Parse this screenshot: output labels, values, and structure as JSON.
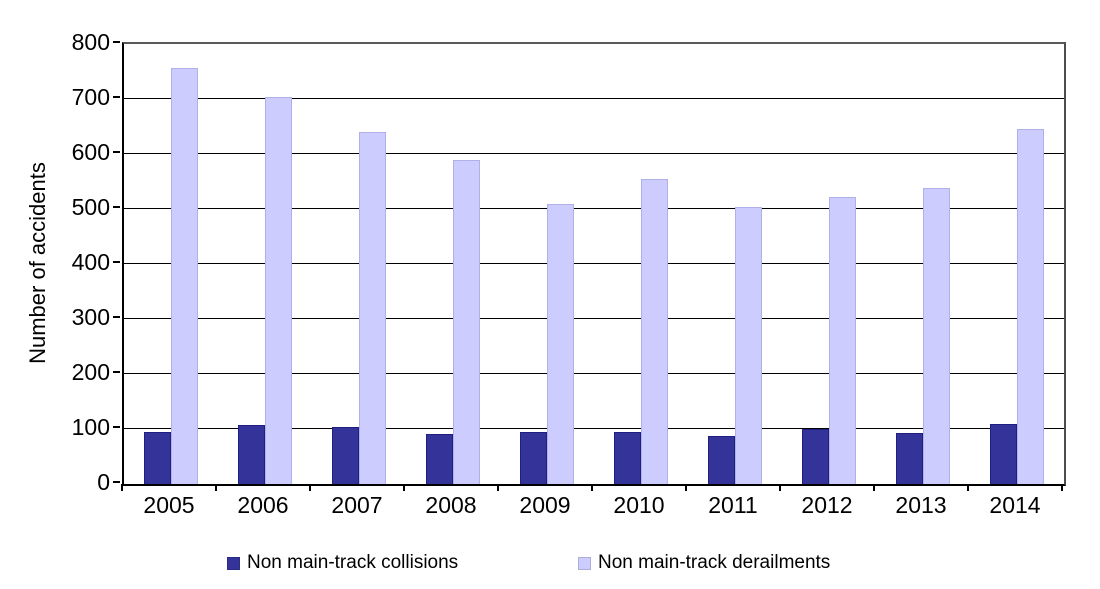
{
  "chart_data": {
    "type": "bar",
    "title": "",
    "xlabel": "",
    "ylabel": "Number of accidents",
    "categories": [
      "2005",
      "2006",
      "2007",
      "2008",
      "2009",
      "2010",
      "2011",
      "2012",
      "2013",
      "2014"
    ],
    "series": [
      {
        "name": "Non main-track collisions",
        "color": "#333399",
        "border_color": "#1f1f80",
        "values": [
          95,
          107,
          103,
          91,
          94,
          94,
          87,
          100,
          92,
          110
        ]
      },
      {
        "name": "Non main-track derailments",
        "color": "#ccccff",
        "border_color": "#b0b0e8",
        "values": [
          757,
          703,
          640,
          590,
          510,
          555,
          503,
          521,
          538,
          645
        ]
      }
    ],
    "ylim": [
      0,
      800
    ],
    "ytick_step": 100,
    "ytick_labels": [
      "0",
      "100",
      "200",
      "300",
      "400",
      "500",
      "600",
      "700",
      "800"
    ],
    "grid": true,
    "legend_position": "bottom",
    "background_color": "#ffffff",
    "gridline_color": "#000000"
  }
}
